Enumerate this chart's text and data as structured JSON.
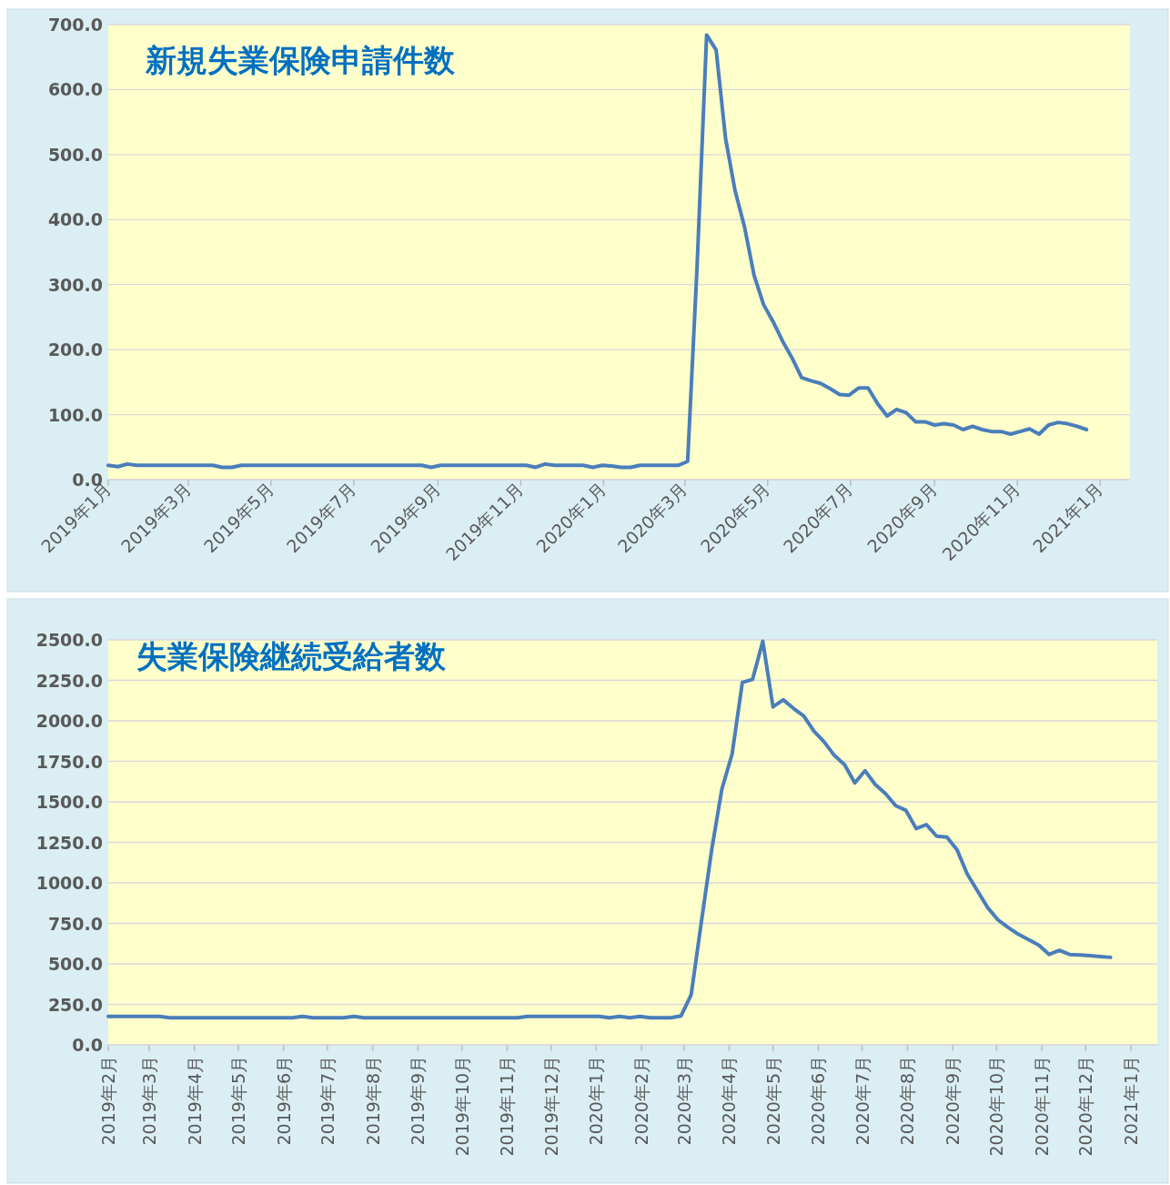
{
  "chart_data": [
    {
      "type": "line",
      "title": "新規失業保険申請件数",
      "grid": "y",
      "xlim": [
        "2019-01-01",
        "2021-01-23"
      ],
      "xticks": [
        {
          "value": "2019-01",
          "label": "2019年1月"
        },
        {
          "value": "2019-03",
          "label": "2019年3月"
        },
        {
          "value": "2019-05",
          "label": "2019年5月"
        },
        {
          "value": "2019-07",
          "label": "2019年7月"
        },
        {
          "value": "2019-09",
          "label": "2019年9月"
        },
        {
          "value": "2019-11",
          "label": "2019年11月"
        },
        {
          "value": "2020-01",
          "label": "2020年1月"
        },
        {
          "value": "2020-03",
          "label": "2020年3月"
        },
        {
          "value": "2020-05",
          "label": "2020年5月"
        },
        {
          "value": "2020-07",
          "label": "2020年7月"
        },
        {
          "value": "2020-09",
          "label": "2020年9月"
        },
        {
          "value": "2020-11",
          "label": "2020年11月"
        },
        {
          "value": "2021-01",
          "label": "2021年1月"
        }
      ],
      "ylim": [
        0,
        700
      ],
      "yticks": [
        {
          "value": 0,
          "label": "0.0"
        },
        {
          "value": 100,
          "label": "100.0"
        },
        {
          "value": 200,
          "label": "200.0"
        },
        {
          "value": 300,
          "label": "300.0"
        },
        {
          "value": 400,
          "label": "400.0"
        },
        {
          "value": 500,
          "label": "500.0"
        },
        {
          "value": 600,
          "label": "600.0"
        },
        {
          "value": 700,
          "label": "700.0"
        }
      ],
      "x": [
        "2019-01-01",
        "2019-01-08",
        "2019-01-15",
        "2019-01-22",
        "2019-01-29",
        "2019-02-05",
        "2019-02-12",
        "2019-02-19",
        "2019-02-26",
        "2019-03-05",
        "2019-03-12",
        "2019-03-19",
        "2019-03-26",
        "2019-04-02",
        "2019-04-09",
        "2019-04-16",
        "2019-04-23",
        "2019-04-30",
        "2019-05-07",
        "2019-05-14",
        "2019-05-21",
        "2019-05-28",
        "2019-06-04",
        "2019-06-11",
        "2019-06-18",
        "2019-06-25",
        "2019-07-02",
        "2019-07-09",
        "2019-07-16",
        "2019-07-23",
        "2019-07-30",
        "2019-08-06",
        "2019-08-13",
        "2019-08-20",
        "2019-08-27",
        "2019-09-03",
        "2019-09-10",
        "2019-09-17",
        "2019-09-24",
        "2019-10-01",
        "2019-10-08",
        "2019-10-15",
        "2019-10-22",
        "2019-10-29",
        "2019-11-05",
        "2019-11-12",
        "2019-11-19",
        "2019-11-26",
        "2019-12-03",
        "2019-12-10",
        "2019-12-17",
        "2019-12-24",
        "2019-12-31",
        "2020-01-07",
        "2020-01-14",
        "2020-01-21",
        "2020-01-28",
        "2020-02-04",
        "2020-02-11",
        "2020-02-18",
        "2020-02-25",
        "2020-03-03",
        "2020-03-10",
        "2020-03-17",
        "2020-03-24",
        "2020-03-31",
        "2020-04-07",
        "2020-04-14",
        "2020-04-21",
        "2020-04-28",
        "2020-05-05",
        "2020-05-12",
        "2020-05-19",
        "2020-05-26",
        "2020-06-02",
        "2020-06-09",
        "2020-06-16",
        "2020-06-23",
        "2020-06-30",
        "2020-07-07",
        "2020-07-14",
        "2020-07-21",
        "2020-07-28",
        "2020-08-04",
        "2020-08-11",
        "2020-08-18",
        "2020-08-25",
        "2020-09-01",
        "2020-09-08",
        "2020-09-15",
        "2020-09-22",
        "2020-09-29",
        "2020-10-06",
        "2020-10-13",
        "2020-10-20",
        "2020-10-27",
        "2020-11-03",
        "2020-11-10",
        "2020-11-17",
        "2020-11-24",
        "2020-12-01",
        "2020-12-08",
        "2020-12-15",
        "2020-12-22"
      ],
      "series": [
        {
          "color": "#4a7ebb",
          "values": [
            22,
            20,
            24,
            22,
            22,
            22,
            22,
            22,
            22,
            22,
            22,
            22,
            19,
            19,
            22,
            22,
            22,
            22,
            22,
            22,
            22,
            22,
            22,
            22,
            22,
            22,
            22,
            22,
            22,
            22,
            22,
            22,
            22,
            22,
            19,
            22,
            22,
            22,
            22,
            22,
            22,
            22,
            22,
            22,
            22,
            19,
            24,
            22,
            22,
            22,
            22,
            19,
            22,
            21,
            19,
            19,
            22,
            22,
            22,
            22,
            22,
            28,
            330,
            684,
            661,
            524,
            444,
            388,
            314,
            269,
            243,
            213,
            187,
            157,
            152,
            148,
            140,
            131,
            130,
            141,
            141,
            117,
            98,
            108,
            103,
            89,
            89,
            84,
            86,
            84,
            77,
            82,
            77,
            74,
            74,
            70,
            74,
            78,
            70,
            84,
            88,
            86,
            82,
            77
          ]
        }
      ]
    },
    {
      "type": "line",
      "title": "失業保険継続受給者数",
      "grid": "y",
      "xlim": [
        "2019-02-01",
        "2021-01-19"
      ],
      "xticks": [
        {
          "value": "2019-02",
          "label": "2019年2月"
        },
        {
          "value": "2019-03",
          "label": "2019年3月"
        },
        {
          "value": "2019-04",
          "label": "2019年4月"
        },
        {
          "value": "2019-05",
          "label": "2019年5月"
        },
        {
          "value": "2019-06",
          "label": "2019年6月"
        },
        {
          "value": "2019-07",
          "label": "2019年7月"
        },
        {
          "value": "2019-08",
          "label": "2019年8月"
        },
        {
          "value": "2019-09",
          "label": "2019年9月"
        },
        {
          "value": "2019-10",
          "label": "2019年10月"
        },
        {
          "value": "2019-11",
          "label": "2019年11月"
        },
        {
          "value": "2019-12",
          "label": "2019年12月"
        },
        {
          "value": "2020-01",
          "label": "2020年1月"
        },
        {
          "value": "2020-02",
          "label": "2020年2月"
        },
        {
          "value": "2020-03",
          "label": "2020年3月"
        },
        {
          "value": "2020-04",
          "label": "2020年4月"
        },
        {
          "value": "2020-05",
          "label": "2020年5月"
        },
        {
          "value": "2020-06",
          "label": "2020年6月"
        },
        {
          "value": "2020-07",
          "label": "2020年7月"
        },
        {
          "value": "2020-08",
          "label": "2020年8月"
        },
        {
          "value": "2020-09",
          "label": "2020年9月"
        },
        {
          "value": "2020-10",
          "label": "2020年10月"
        },
        {
          "value": "2020-11",
          "label": "2020年11月"
        },
        {
          "value": "2020-12",
          "label": "2020年12月"
        },
        {
          "value": "2021-01",
          "label": "2021年1月"
        }
      ],
      "ylim": [
        0,
        2500
      ],
      "yticks": [
        {
          "value": 0,
          "label": "0.0"
        },
        {
          "value": 250,
          "label": "250.0"
        },
        {
          "value": 500,
          "label": "500.0"
        },
        {
          "value": 750,
          "label": "750.0"
        },
        {
          "value": 1000,
          "label": "1000.0"
        },
        {
          "value": 1250,
          "label": "1250.0"
        },
        {
          "value": 1500,
          "label": "1500.0"
        },
        {
          "value": 1750,
          "label": "1750.0"
        },
        {
          "value": 2000,
          "label": "2000.0"
        },
        {
          "value": 2250,
          "label": "2250.0"
        },
        {
          "value": 2500,
          "label": "2500.0"
        }
      ],
      "x": [
        "2019-02-01",
        "2019-02-08",
        "2019-02-15",
        "2019-02-22",
        "2019-03-01",
        "2019-03-08",
        "2019-03-15",
        "2019-03-22",
        "2019-03-29",
        "2019-04-05",
        "2019-04-12",
        "2019-04-19",
        "2019-04-26",
        "2019-05-03",
        "2019-05-10",
        "2019-05-17",
        "2019-05-24",
        "2019-05-31",
        "2019-06-07",
        "2019-06-14",
        "2019-06-21",
        "2019-06-28",
        "2019-07-05",
        "2019-07-12",
        "2019-07-19",
        "2019-07-26",
        "2019-08-02",
        "2019-08-09",
        "2019-08-16",
        "2019-08-23",
        "2019-08-30",
        "2019-09-06",
        "2019-09-13",
        "2019-09-20",
        "2019-09-27",
        "2019-10-04",
        "2019-10-11",
        "2019-10-18",
        "2019-10-25",
        "2019-11-01",
        "2019-11-08",
        "2019-11-15",
        "2019-11-22",
        "2019-11-29",
        "2019-12-06",
        "2019-12-13",
        "2019-12-20",
        "2019-12-27",
        "2020-01-03",
        "2020-01-10",
        "2020-01-17",
        "2020-01-24",
        "2020-01-31",
        "2020-02-07",
        "2020-02-14",
        "2020-02-21",
        "2020-02-28",
        "2020-03-06",
        "2020-03-13",
        "2020-03-20",
        "2020-03-27",
        "2020-04-03",
        "2020-04-10",
        "2020-04-17",
        "2020-04-24",
        "2020-05-01",
        "2020-05-08",
        "2020-05-15",
        "2020-05-22",
        "2020-05-29",
        "2020-06-05",
        "2020-06-12",
        "2020-06-19",
        "2020-06-26",
        "2020-07-03",
        "2020-07-10",
        "2020-07-17",
        "2020-07-24",
        "2020-07-31",
        "2020-08-07",
        "2020-08-14",
        "2020-08-21",
        "2020-08-28",
        "2020-09-04",
        "2020-09-11",
        "2020-09-18",
        "2020-09-25",
        "2020-10-02",
        "2020-10-09",
        "2020-10-16",
        "2020-10-23",
        "2020-10-30",
        "2020-11-06",
        "2020-11-13",
        "2020-11-20",
        "2020-11-27",
        "2020-12-04",
        "2020-12-11",
        "2020-12-18"
      ],
      "series": [
        {
          "color": "#4a7ebb",
          "values": [
            176,
            176,
            176,
            176,
            176,
            176,
            167,
            167,
            167,
            167,
            167,
            167,
            167,
            167,
            167,
            167,
            167,
            167,
            167,
            176,
            167,
            167,
            167,
            167,
            176,
            167,
            167,
            167,
            167,
            167,
            167,
            167,
            167,
            167,
            167,
            167,
            167,
            167,
            167,
            167,
            167,
            176,
            176,
            176,
            176,
            176,
            176,
            176,
            176,
            167,
            176,
            167,
            176,
            167,
            167,
            167,
            178,
            310,
            761,
            1203,
            1579,
            1795,
            2237,
            2256,
            2491,
            2086,
            2130,
            2077,
            2030,
            1936,
            1870,
            1786,
            1729,
            1617,
            1692,
            1607,
            1551,
            1476,
            1447,
            1335,
            1359,
            1288,
            1282,
            1203,
            1053,
            949,
            846,
            771,
            724,
            682,
            649,
            615,
            558,
            583,
            558,
            555,
            551,
            545,
            540
          ]
        }
      ]
    }
  ]
}
